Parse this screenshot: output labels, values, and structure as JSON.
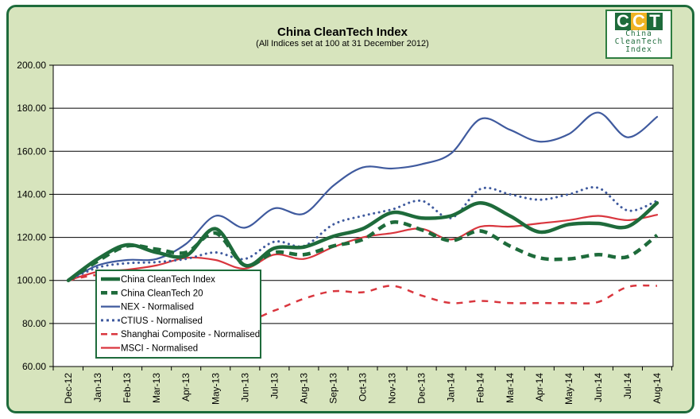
{
  "chart_data": {
    "type": "line",
    "title": "China CleanTech Index",
    "subtitle": "(All Indices set at 100 at 31 December 2012)",
    "xlabel": "",
    "ylabel": "",
    "ylim": [
      60,
      200
    ],
    "yticks": [
      "60.00",
      "80.00",
      "100.00",
      "120.00",
      "140.00",
      "160.00",
      "180.00",
      "200.00"
    ],
    "ytick_values": [
      60,
      80,
      100,
      120,
      140,
      160,
      180,
      200
    ],
    "grid": "horizontal",
    "legend_position": "bottom-left inside plot",
    "categories": [
      "Dec-12",
      "Jan-13",
      "Feb-13",
      "Mar-13",
      "Apr-13",
      "May-13",
      "Jun-13",
      "Jul-13",
      "Aug-13",
      "Sep-13",
      "Oct-13",
      "Nov-13",
      "Dec-13",
      "Jan-14",
      "Feb-14",
      "Mar-14",
      "Apr-14",
      "May-14",
      "Jun-14",
      "Jul-14",
      "Aug-14"
    ],
    "series": [
      {
        "name": "China CleanTech Index",
        "color": "#1e6b3b",
        "style": "solid-thick",
        "values": [
          100,
          110,
          116.5,
          113,
          111.5,
          124,
          107,
          115,
          115.5,
          120.5,
          124,
          131.5,
          129,
          130,
          136,
          130,
          122.5,
          126,
          126.5,
          125,
          136
        ]
      },
      {
        "name": "China CleanTech 20",
        "color": "#1e6b3b",
        "style": "dashed-thick",
        "values": [
          100,
          109,
          116,
          114.5,
          113,
          122,
          107,
          113,
          112,
          116,
          119,
          127,
          123.5,
          118.5,
          123,
          116,
          110.5,
          110,
          112,
          111,
          121
        ]
      },
      {
        "name": "NEX - Normalised",
        "color": "#3f5a9e",
        "style": "solid",
        "values": [
          100,
          107,
          109.5,
          110,
          117,
          130,
          124.5,
          133.5,
          131,
          144,
          152.5,
          152,
          154,
          159,
          175,
          170,
          164.5,
          168,
          178,
          166.5,
          176
        ]
      },
      {
        "name": "CTIUS - Normalised",
        "color": "#3f5a9e",
        "style": "dotted",
        "values": [
          100,
          106,
          108,
          108.5,
          110,
          113,
          110,
          118,
          116,
          126,
          130,
          133,
          137,
          129,
          142.5,
          140,
          137.5,
          140,
          143,
          132.5,
          137
        ]
      },
      {
        "name": "Shanghai Composite - Normalised",
        "color": "#d9363e",
        "style": "dashed",
        "values": [
          100,
          102.5,
          101,
          97,
          95.5,
          91.5,
          82,
          86,
          91.5,
          95,
          94.5,
          97.5,
          93,
          89.5,
          90.5,
          89.5,
          89.5,
          89.5,
          90,
          97,
          97.5
        ]
      },
      {
        "name": "MSCI - Normalised",
        "color": "#d9363e",
        "style": "solid",
        "values": [
          100,
          104,
          105,
          107,
          110.5,
          109.5,
          105.5,
          112,
          110,
          115.5,
          120,
          122,
          124,
          119,
          125,
          125,
          126.5,
          128,
          130,
          128,
          130.5
        ]
      }
    ]
  },
  "logo": {
    "letters": [
      "C",
      "C",
      "T"
    ],
    "letter_colors": [
      "#1e6b3b",
      "#f0b323",
      "#1e6b3b"
    ],
    "line1": "China",
    "line2": "CleanTech",
    "line3": "Index"
  },
  "colors": {
    "background": "#d7e4bd",
    "border": "#1e6b3b",
    "plot_background": "#ffffff"
  }
}
